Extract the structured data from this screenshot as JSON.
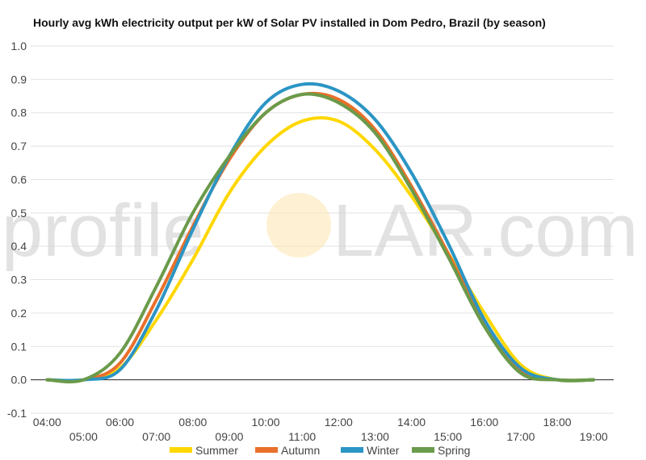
{
  "watermark": {
    "left": "profile",
    "right": "LAR.com"
  },
  "chart_data": {
    "type": "line",
    "title": "Hourly avg kWh electricity output per kW of Solar PV installed in Dom Pedro, Brazil (by season)",
    "xlabel": "",
    "ylabel": "",
    "x": [
      4,
      5,
      6,
      7,
      8,
      9,
      10,
      11,
      12,
      13,
      14,
      15,
      16,
      17,
      18,
      19
    ],
    "x_tick_labels": [
      "04:00",
      "05:00",
      "06:00",
      "07:00",
      "08:00",
      "09:00",
      "10:00",
      "11:00",
      "12:00",
      "13:00",
      "14:00",
      "15:00",
      "16:00",
      "17:00",
      "18:00",
      "19:00"
    ],
    "xlim": [
      3.55,
      19.55
    ],
    "ylim": [
      -0.1,
      1.0
    ],
    "y_ticks": [
      "-0.1",
      "0.0",
      "0.1",
      "0.2",
      "0.3",
      "0.4",
      "0.5",
      "0.6",
      "0.7",
      "0.8",
      "0.9",
      "1.0"
    ],
    "grid": true,
    "legend": "bottom",
    "series": [
      {
        "name": "Summer",
        "color": "#FFD700",
        "values": [
          0.0,
          0.0,
          0.035,
          0.18,
          0.36,
          0.56,
          0.7,
          0.775,
          0.775,
          0.69,
          0.55,
          0.38,
          0.2,
          0.045,
          0.0,
          0.0
        ]
      },
      {
        "name": "Autumn",
        "color": "#E8702A",
        "values": [
          0.0,
          0.0,
          0.05,
          0.24,
          0.46,
          0.66,
          0.8,
          0.855,
          0.84,
          0.75,
          0.58,
          0.38,
          0.17,
          0.03,
          0.0,
          0.0
        ]
      },
      {
        "name": "Winter",
        "color": "#2B95C4",
        "values": [
          0.0,
          0.0,
          0.03,
          0.21,
          0.45,
          0.67,
          0.83,
          0.885,
          0.865,
          0.78,
          0.62,
          0.41,
          0.18,
          0.035,
          0.0,
          0.0
        ]
      },
      {
        "name": "Spring",
        "color": "#6A9A4A",
        "values": [
          0.0,
          0.0,
          0.08,
          0.28,
          0.5,
          0.67,
          0.8,
          0.855,
          0.83,
          0.74,
          0.57,
          0.37,
          0.16,
          0.02,
          0.0,
          0.0
        ]
      }
    ]
  }
}
